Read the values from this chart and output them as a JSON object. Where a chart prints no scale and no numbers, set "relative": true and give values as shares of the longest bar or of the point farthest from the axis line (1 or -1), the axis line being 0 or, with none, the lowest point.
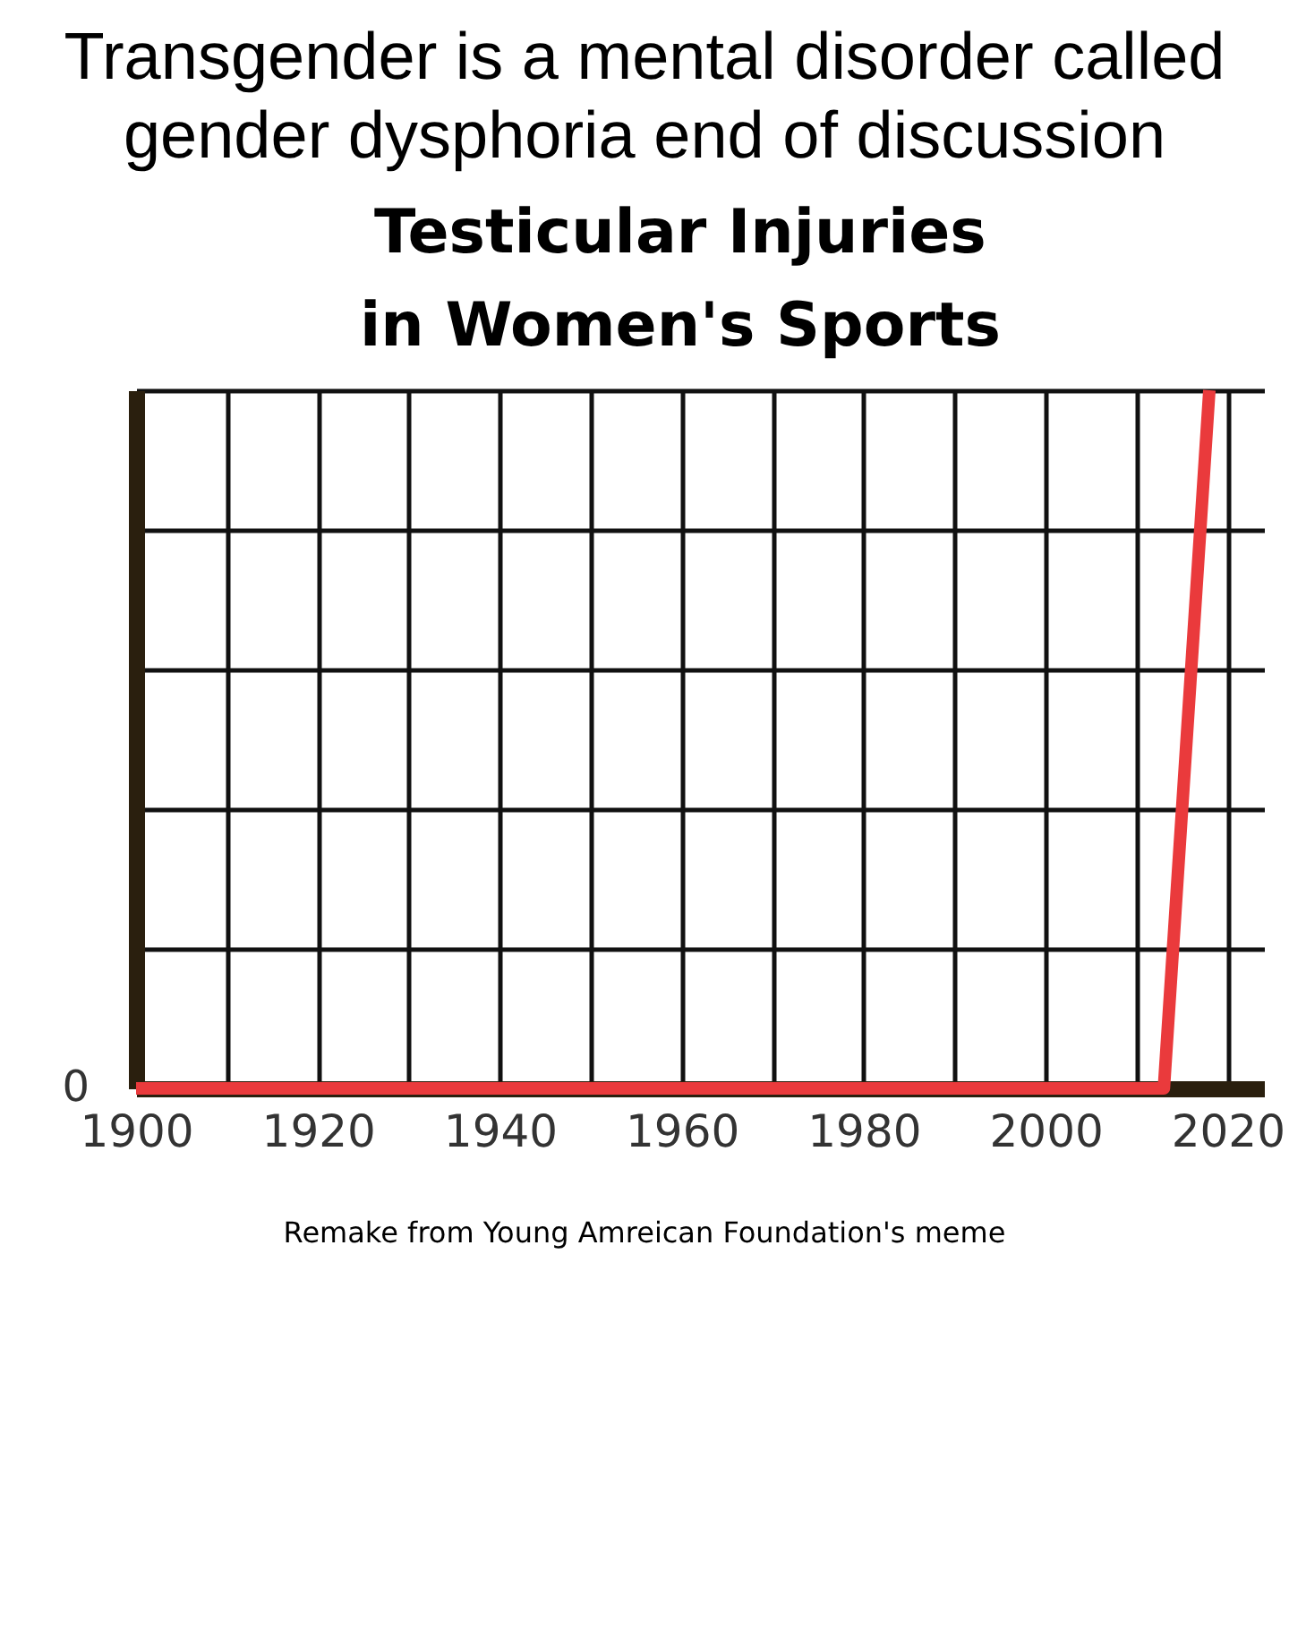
{
  "chart_data": {
    "type": "line",
    "title": "Transgender is a mental disorder called gender dysphoria end of discussion",
    "subtitle": "Testicular Injuries in Women's Sports",
    "relative": true,
    "x": [
      1900,
      2013,
      2018
    ],
    "series": [
      {
        "color": "#ea3a3c",
        "values": [
          0,
          0,
          1
        ]
      }
    ],
    "xlim": [
      1900,
      2024
    ],
    "xticks": [
      1900,
      {
        "value": 1910,
        "label": null
      },
      1920,
      {
        "value": 1930,
        "label": null
      },
      1940,
      {
        "value": 1950,
        "label": null
      },
      1960,
      {
        "value": 1970,
        "label": null
      },
      1980,
      {
        "value": 1990,
        "label": null
      },
      2000,
      {
        "value": 2010,
        "label": null
      },
      2020
    ],
    "grid": true,
    "marker": "none",
    "line_style": "solid",
    "annotations": [
      {
        "text": "0",
        "x": 1900,
        "y": 0
      },
      "Remake from Young Amreican Foundation's meme"
    ]
  }
}
